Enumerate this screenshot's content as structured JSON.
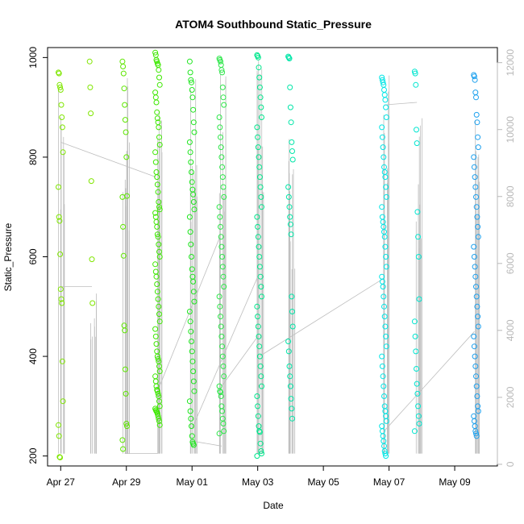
{
  "chart_data": {
    "type": "scatter",
    "title": "ATOM4 Southbound Static_Pressure",
    "xlabel": "Date",
    "ylabel": "Static_Pressure",
    "x_ticks": [
      {
        "day": 0,
        "label": "Apr 27"
      },
      {
        "day": 2,
        "label": "Apr 29"
      },
      {
        "day": 4,
        "label": "May 01"
      },
      {
        "day": 6,
        "label": "May 03"
      },
      {
        "day": 8,
        "label": "May 05"
      },
      {
        "day": 10,
        "label": "May 07"
      },
      {
        "day": 12,
        "label": "May 09"
      }
    ],
    "xlim_days": [
      -0.4,
      13.3
    ],
    "ylim": [
      180,
      1020
    ],
    "y_ticks": [
      200,
      400,
      600,
      800,
      1000
    ],
    "y2lim": [
      -50,
      12450
    ],
    "y2_ticks": [
      0,
      2000,
      4000,
      6000,
      8000,
      10000,
      12000
    ],
    "y2_axis_color": "#b8b8b8",
    "line_color": "#bebebe",
    "grid": false,
    "clusters": [
      {
        "day": 0.0,
        "color": "#7fe600",
        "values": [
          970,
          968,
          945,
          940,
          935,
          905,
          880,
          860,
          810,
          740,
          680,
          672,
          605,
          535,
          515,
          507,
          390,
          310,
          262,
          240,
          198,
          197
        ]
      },
      {
        "day": 0.95,
        "color": "#80e600",
        "values": [
          992,
          940,
          888,
          752,
          595,
          507
        ]
      },
      {
        "day": 1.95,
        "color": "#5ee600",
        "values": [
          992,
          982,
          968,
          938,
          905,
          875,
          850,
          800,
          722,
          720,
          660,
          602,
          462,
          452,
          374,
          325,
          265,
          260,
          232,
          214
        ]
      },
      {
        "day": 2.95,
        "color": "#3de800",
        "values": [
          1010,
          1005,
          995,
          992,
          988,
          985,
          975,
          960,
          945,
          930,
          920,
          910,
          890,
          878,
          870,
          860,
          840,
          825,
          810,
          790,
          770,
          760,
          745,
          730,
          710,
          700,
          695,
          688,
          680,
          670,
          660,
          645,
          640,
          625,
          610,
          600,
          585,
          570,
          560,
          545,
          530,
          515,
          500,
          485,
          470,
          455,
          440,
          425,
          410,
          400,
          395,
          390,
          380,
          370,
          360,
          350,
          340,
          333,
          330,
          325,
          320,
          310,
          300,
          295,
          292,
          290,
          288,
          285,
          280,
          275,
          270,
          262
        ]
      },
      {
        "day": 4.0,
        "color": "#1fe61f",
        "values": [
          992,
          970,
          955,
          950,
          935,
          920,
          895,
          870,
          850,
          830,
          810,
          790,
          770,
          750,
          735,
          725,
          710,
          695,
          680,
          650,
          625,
          600,
          575,
          560,
          550,
          530,
          510,
          490,
          470,
          450,
          430,
          410,
          390,
          370,
          350,
          330,
          310,
          290,
          275,
          260,
          240,
          228,
          225,
          222
        ]
      },
      {
        "day": 4.9,
        "color": "#2ee64a",
        "values": [
          998,
          995,
          992,
          985,
          975,
          970,
          940,
          920,
          905,
          880,
          860,
          840,
          820,
          800,
          780,
          760,
          740,
          720,
          700,
          680,
          660,
          640,
          620,
          600,
          580,
          560,
          540,
          520,
          500,
          480,
          460,
          440,
          420,
          400,
          380,
          360,
          340,
          330,
          328,
          320,
          300,
          290,
          275,
          265,
          250,
          245
        ]
      },
      {
        "day": 6.05,
        "color": "#00e68c",
        "values": [
          1005,
          1003,
          1000,
          980,
          960,
          940,
          920,
          900,
          880,
          860,
          840,
          820,
          800,
          780,
          760,
          740,
          720,
          700,
          680,
          660,
          640,
          620,
          600,
          580,
          560,
          540,
          520,
          500,
          480,
          460,
          440,
          420,
          400,
          380,
          360,
          340,
          320,
          300,
          280,
          260,
          250,
          248,
          225,
          210,
          205,
          200
        ]
      },
      {
        "day": 7.0,
        "color": "#00e6a8",
        "values": [
          1002,
          1000,
          998,
          940,
          900,
          870,
          830,
          812,
          795,
          740,
          720,
          700,
          680,
          665,
          645,
          520,
          490,
          460,
          430,
          410,
          380,
          360,
          340,
          315,
          295,
          275
        ]
      },
      {
        "day": 9.85,
        "color": "#00e6e6",
        "values": [
          960,
          955,
          950,
          945,
          935,
          925,
          915,
          900,
          880,
          860,
          840,
          820,
          800,
          780,
          770,
          760,
          740,
          720,
          700,
          680,
          670,
          660,
          650,
          640,
          620,
          600,
          580,
          560,
          550,
          540,
          520,
          500,
          480,
          460,
          440,
          420,
          400,
          380,
          360,
          340,
          320,
          300,
          290,
          280,
          270,
          260,
          250,
          240,
          230,
          220,
          210,
          205,
          200
        ]
      },
      {
        "day": 10.85,
        "color": "#00e6d0",
        "values": [
          972,
          968,
          945,
          855,
          828,
          690,
          640,
          600,
          515,
          470,
          440,
          410,
          375,
          345,
          325,
          300,
          280,
          265,
          250
        ]
      },
      {
        "day": 12.65,
        "color": "#1ca0ee",
        "values": [
          965,
          962,
          955,
          930,
          920,
          885,
          870,
          840,
          820,
          800,
          780,
          760,
          740,
          720,
          700,
          680,
          660,
          640,
          620,
          600,
          580,
          560,
          540,
          520,
          500,
          480,
          460,
          440,
          420,
          400,
          380,
          360,
          340,
          320,
          300,
          290,
          280,
          270,
          260,
          250,
          245,
          240
        ]
      }
    ],
    "spans": [
      {
        "day": 0.0,
        "low": 205,
        "high": 965
      },
      {
        "day": 0.95,
        "low": 205,
        "high": 540
      },
      {
        "day": 1.95,
        "low": 205,
        "high": 985
      },
      {
        "day": 2.95,
        "low": 205,
        "high": 1005
      },
      {
        "day": 4.0,
        "low": 205,
        "high": 1000
      },
      {
        "day": 4.9,
        "low": 205,
        "high": 995
      },
      {
        "day": 6.05,
        "low": 205,
        "high": 1005
      },
      {
        "day": 7.0,
        "low": 205,
        "high": 860
      },
      {
        "day": 9.85,
        "low": 205,
        "high": 980
      },
      {
        "day": 10.85,
        "low": 205,
        "high": 880
      },
      {
        "day": 12.65,
        "low": 205,
        "high": 970
      }
    ],
    "connectors": [
      {
        "from_day": 0.0,
        "from": 540,
        "to_day": 0.95,
        "to": 540
      },
      {
        "from_day": 0.0,
        "from": 830,
        "to_day": 2.9,
        "to": 760
      },
      {
        "from_day": 1.95,
        "from": 205,
        "to_day": 2.95,
        "to": 205
      },
      {
        "from_day": 2.95,
        "from": 330,
        "to_day": 4.85,
        "to": 640
      },
      {
        "from_day": 4.0,
        "from": 230,
        "to_day": 4.9,
        "to": 220
      },
      {
        "from_day": 4.0,
        "from": 255,
        "to_day": 6.0,
        "to": 560
      },
      {
        "from_day": 4.9,
        "from": 340,
        "to_day": 6.0,
        "to": 440
      },
      {
        "from_day": 6.05,
        "from": 400,
        "to_day": 9.8,
        "to": 555
      },
      {
        "from_day": 9.85,
        "from": 905,
        "to_day": 10.85,
        "to": 910
      },
      {
        "from_day": 9.85,
        "from": 250,
        "to_day": 12.6,
        "to": 450
      }
    ]
  }
}
